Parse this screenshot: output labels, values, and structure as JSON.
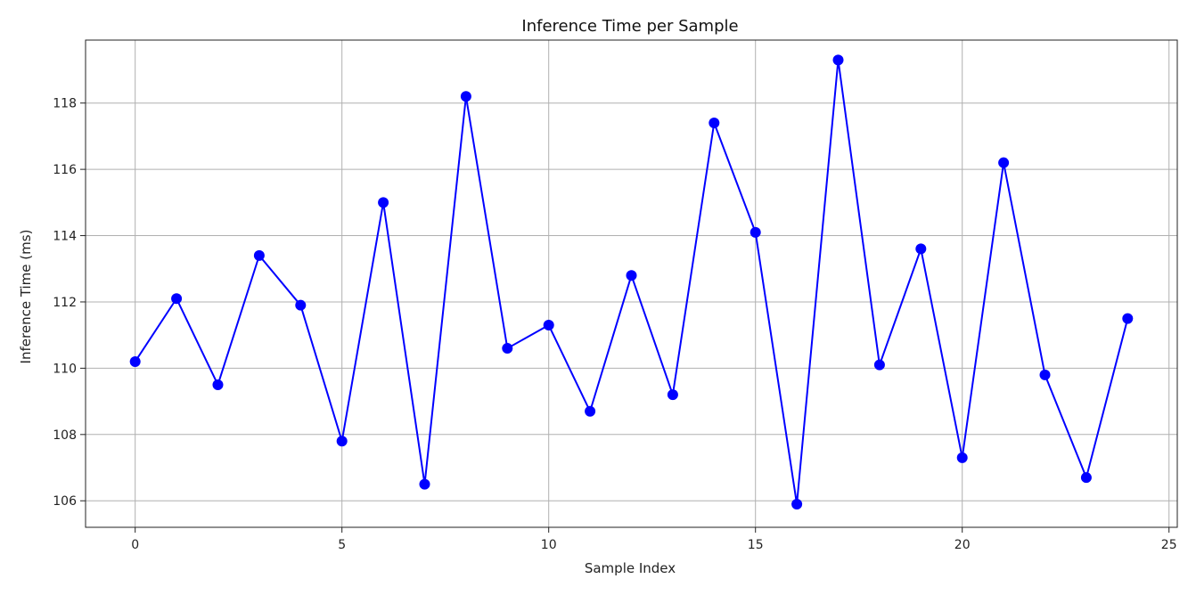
{
  "chart_data": {
    "type": "line",
    "title": "Inference Time per Sample",
    "xlabel": "Sample Index",
    "ylabel": "Inference Time (ms)",
    "xlim": [
      -1.2,
      25.2
    ],
    "ylim": [
      105.2,
      119.9
    ],
    "x_ticks": [
      0,
      5,
      10,
      15,
      20,
      25
    ],
    "y_ticks": [
      106,
      108,
      110,
      112,
      114,
      116,
      118
    ],
    "grid": true,
    "legend": "none",
    "series": [
      {
        "color": "#0000ff",
        "marker": "circle",
        "x": [
          0,
          1,
          2,
          3,
          4,
          5,
          6,
          7,
          8,
          9,
          10,
          11,
          12,
          13,
          14,
          15,
          16,
          17,
          18,
          19,
          20,
          21,
          22,
          23,
          24
        ],
        "y": [
          110.2,
          112.1,
          109.5,
          113.4,
          111.9,
          107.8,
          115.0,
          106.5,
          118.2,
          110.6,
          111.3,
          108.7,
          112.8,
          109.2,
          117.4,
          114.1,
          105.9,
          119.3,
          110.1,
          113.6,
          107.3,
          116.2,
          109.8,
          106.7,
          111.5
        ]
      }
    ]
  }
}
